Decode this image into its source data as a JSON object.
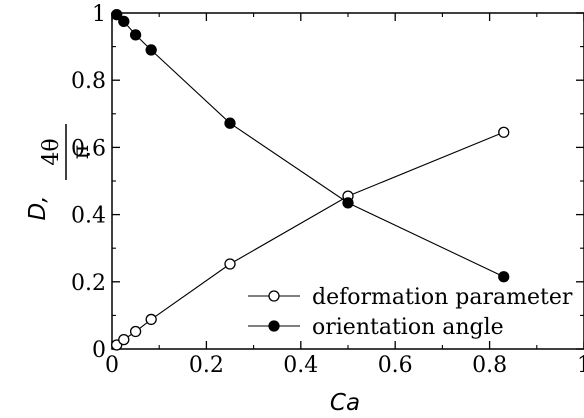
{
  "chart_data": {
    "type": "line",
    "xlabel": "Ca",
    "ylabel": {
      "prefix": "D,",
      "numerator": "4θ",
      "denominator": "π"
    },
    "xlim": [
      0,
      1
    ],
    "ylim": [
      0,
      1
    ],
    "x_ticks": [
      "0",
      "0.2",
      "0.4",
      "0.6",
      "0.8",
      "1"
    ],
    "y_ticks": [
      "0",
      "0.2",
      "0.4",
      "0.6",
      "0.8",
      "1"
    ],
    "grid": false,
    "legend_position": "bottom-right",
    "series": [
      {
        "name": "deformation parameter",
        "marker": "open-circle",
        "x": [
          0.01,
          0.025,
          0.05,
          0.083,
          0.25,
          0.5,
          0.83
        ],
        "y": [
          0.012,
          0.028,
          0.052,
          0.088,
          0.253,
          0.455,
          0.645
        ]
      },
      {
        "name": "orientation angle",
        "marker": "filled-circle",
        "x": [
          0.01,
          0.025,
          0.05,
          0.083,
          0.25,
          0.5,
          0.83
        ],
        "y": [
          0.995,
          0.975,
          0.935,
          0.89,
          0.672,
          0.435,
          0.215
        ]
      }
    ]
  }
}
